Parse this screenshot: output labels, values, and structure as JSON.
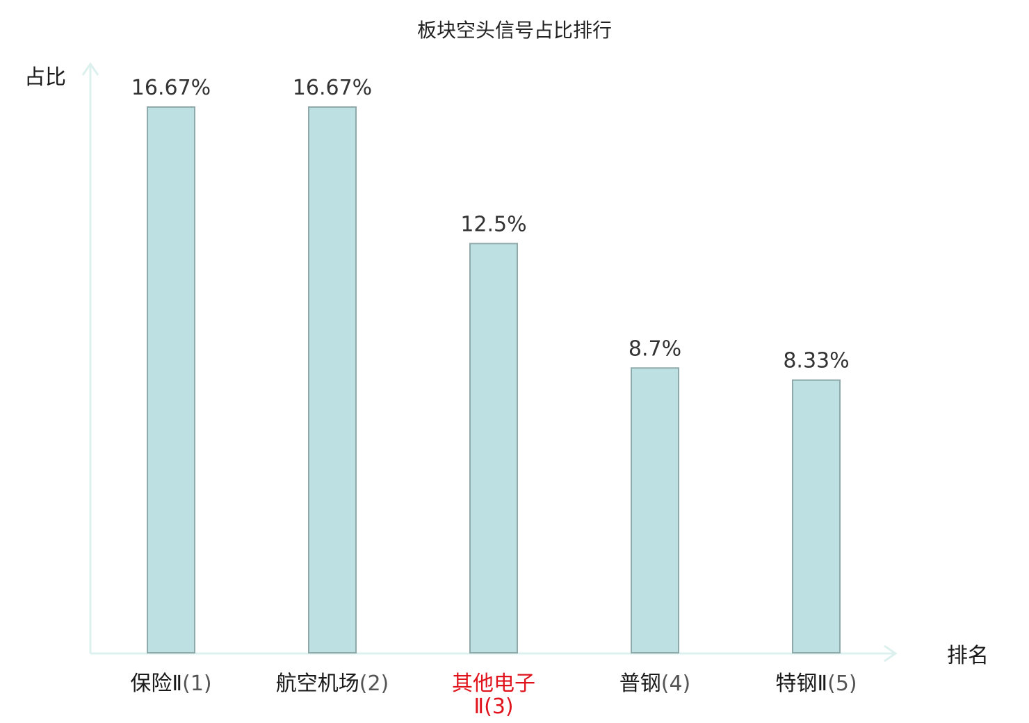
{
  "chart_data": {
    "type": "bar",
    "title": "板块空头信号占比排行",
    "ylabel": "占比",
    "xlabel": "排名",
    "ylim": [
      0,
      18.5
    ],
    "grid": false,
    "legend": "none",
    "categories": [
      {
        "name": "保险Ⅱ",
        "rank": "(1)",
        "highlight": false
      },
      {
        "name": "航空机场",
        "rank": "(2)",
        "highlight": false
      },
      {
        "name": "其他电子Ⅱ",
        "rank": "(3)",
        "highlight": true
      },
      {
        "name": "普钢",
        "rank": "(4)",
        "highlight": false
      },
      {
        "name": "特钢Ⅱ",
        "rank": "(5)",
        "highlight": false
      }
    ],
    "values": [
      16.67,
      16.67,
      12.5,
      8.7,
      8.33
    ],
    "value_labels": [
      "16.67%",
      "16.67%",
      "12.5%",
      "8.7%",
      "8.33%"
    ],
    "colors": {
      "bar_fill": "#bde0e2",
      "bar_stroke": "#8fa9aa",
      "axis": "#dcf0ee",
      "highlight_text": "#e0121b",
      "text": "#1a1a1a"
    }
  }
}
